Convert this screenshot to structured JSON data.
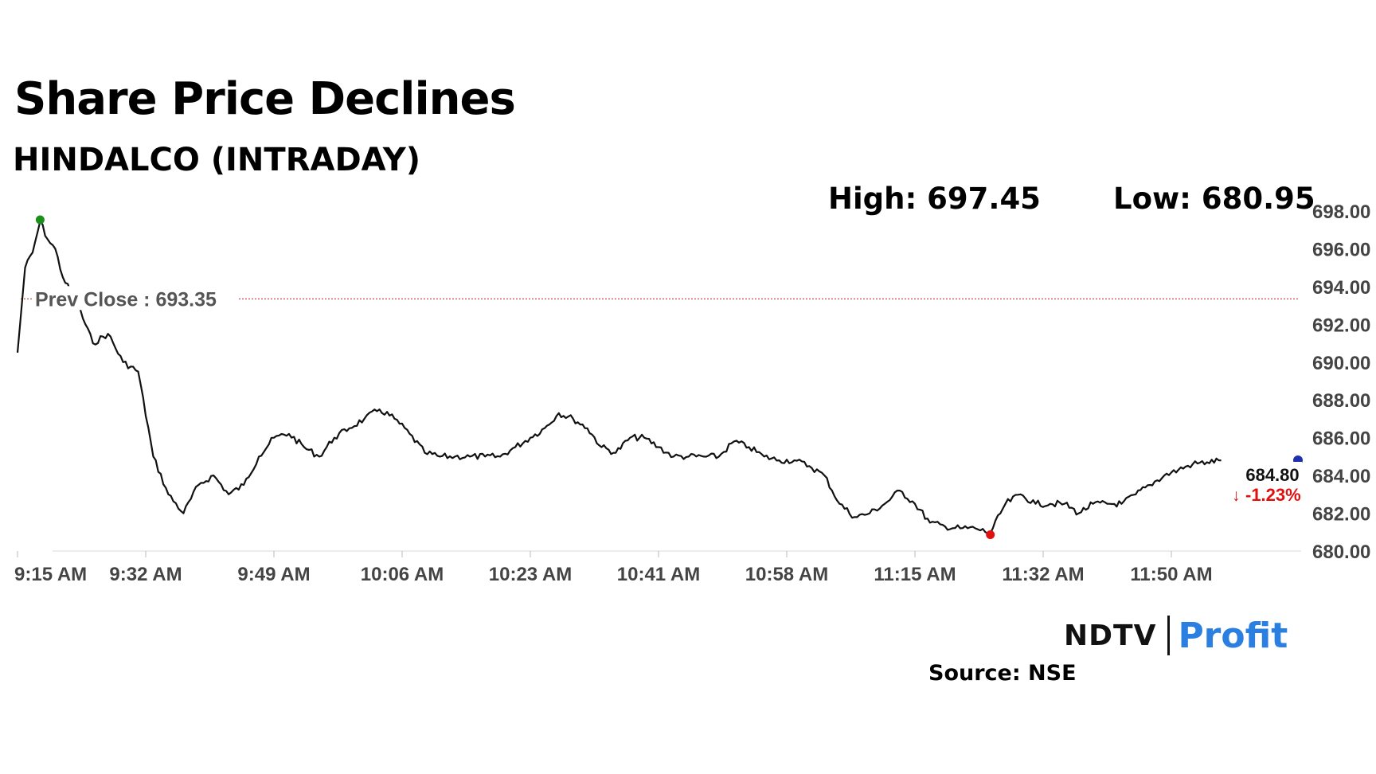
{
  "header": {
    "title": "Share Price Declines",
    "subtitle": "HINDALCO (INTRADAY)",
    "high_label": "High: 697.45",
    "low_label": "Low: 680.95"
  },
  "footer": {
    "brand_ndtv": "NDTV",
    "brand_profit": "Profit",
    "source": "Source: NSE"
  },
  "chart_data": {
    "type": "line",
    "title": "Share Price Declines",
    "subtitle": "HINDALCO (INTRADAY)",
    "xlabel": "",
    "ylabel": "",
    "ylim": [
      680,
      698
    ],
    "y_ticks": [
      "698.00",
      "696.00",
      "694.00",
      "692.00",
      "690.00",
      "688.00",
      "686.00",
      "684.00",
      "682.00",
      "680.00"
    ],
    "x_ticks": [
      "9:15 AM",
      "9:32 AM",
      "9:49 AM",
      "10:06 AM",
      "10:23 AM",
      "10:41 AM",
      "10:58 AM",
      "11:15 AM",
      "11:32 AM",
      "11:50 AM"
    ],
    "grid": false,
    "series": [
      {
        "x": [
          "9:15 AM",
          "9:16 AM",
          "9:17 AM",
          "9:18 AM",
          "9:19 AM",
          "9:20 AM",
          "9:21 AM",
          "9:23 AM",
          "9:25 AM",
          "9:27 AM",
          "9:29 AM",
          "9:31 AM",
          "9:33 AM",
          "9:35 AM",
          "9:37 AM",
          "9:39 AM",
          "9:41 AM",
          "9:43 AM",
          "9:45 AM",
          "9:47 AM",
          "9:49 AM",
          "9:51 AM",
          "9:53 AM",
          "9:55 AM",
          "9:57 AM",
          "9:59 AM",
          "10:01 AM",
          "10:03 AM",
          "10:05 AM",
          "10:07 AM",
          "10:09 AM",
          "10:11 AM",
          "10:13 AM",
          "10:15 AM",
          "10:17 AM",
          "10:19 AM",
          "10:21 AM",
          "10:23 AM",
          "10:25 AM",
          "10:27 AM",
          "10:29 AM",
          "10:31 AM",
          "10:33 AM",
          "10:35 AM",
          "10:37 AM",
          "10:39 AM",
          "10:41 AM",
          "10:43 AM",
          "10:45 AM",
          "10:47 AM",
          "10:49 AM",
          "10:51 AM",
          "10:53 AM",
          "10:55 AM",
          "10:57 AM",
          "10:59 AM",
          "11:01 AM",
          "11:03 AM",
          "11:05 AM",
          "11:07 AM",
          "11:09 AM",
          "11:11 AM",
          "11:13 AM",
          "11:15 AM",
          "11:17 AM",
          "11:19 AM",
          "11:21 AM",
          "11:23 AM",
          "11:25 AM",
          "11:27 AM",
          "11:29 AM",
          "11:31 AM",
          "11:33 AM",
          "11:35 AM",
          "11:37 AM",
          "11:39 AM",
          "11:41 AM",
          "11:43 AM",
          "11:45 AM",
          "11:47 AM",
          "11:49 AM",
          "11:51 AM",
          "11:53 AM",
          "11:55 AM",
          "11:57 AM"
        ],
        "values": [
          690.5,
          695.0,
          695.8,
          697.45,
          696.5,
          696.0,
          694.5,
          693.0,
          691.0,
          691.5,
          690.0,
          689.5,
          685.0,
          683.0,
          682.0,
          683.5,
          684.0,
          683.0,
          683.5,
          685.0,
          686.0,
          686.2,
          685.5,
          685.0,
          686.0,
          686.5,
          687.0,
          687.5,
          687.0,
          686.2,
          685.2,
          685.0,
          685.0,
          685.0,
          685.0,
          685.0,
          685.5,
          686.0,
          686.5,
          687.3,
          687.0,
          686.5,
          685.5,
          685.2,
          686.0,
          686.0,
          685.5,
          685.0,
          685.0,
          685.0,
          685.0,
          685.8,
          685.5,
          685.0,
          684.8,
          684.8,
          684.5,
          684.0,
          682.5,
          681.8,
          682.0,
          682.5,
          683.2,
          682.5,
          681.5,
          681.3,
          681.2,
          681.2,
          680.95,
          682.5,
          683.0,
          682.5,
          682.5,
          682.5,
          682.0,
          682.5,
          682.5,
          682.5,
          683.0,
          683.5,
          684.0,
          684.3,
          684.6,
          684.7,
          684.8
        ]
      }
    ],
    "prev_close": 693.35,
    "prev_close_label": "Prev Close : 693.35",
    "last_price": "684.80",
    "change_pct": "-1.23%",
    "markers": {
      "high": 697.45,
      "low": 680.95
    },
    "colors": {
      "line": "#111111",
      "prev_close": "#c0392b",
      "high_marker": "#1a8f1a",
      "low_marker": "#e01010",
      "last_marker": "#1f2fb0",
      "change_down": "#e01010",
      "axis_text": "#444444"
    }
  }
}
